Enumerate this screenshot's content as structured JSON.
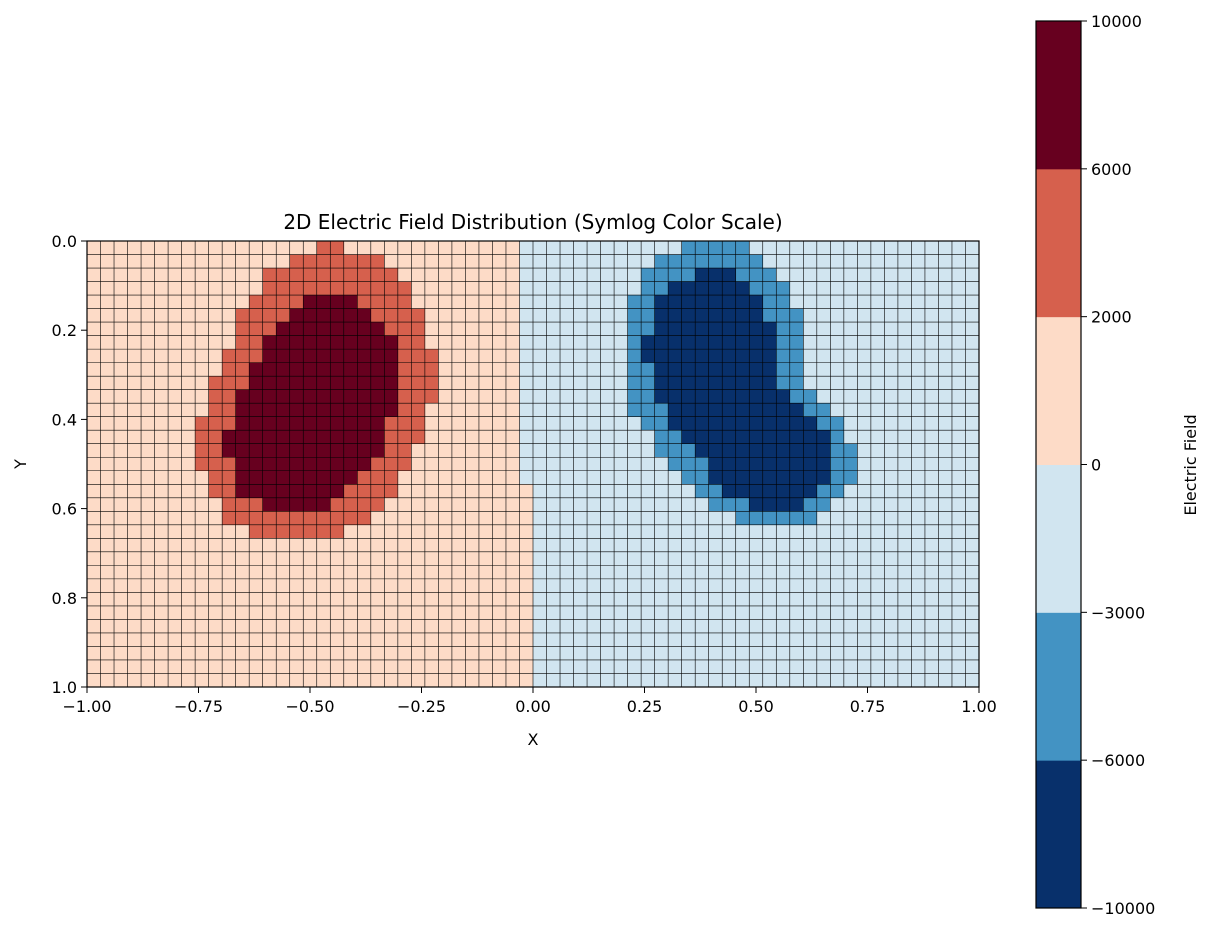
{
  "chart_data": {
    "type": "heatmap",
    "title": "2D Electric Field Distribution (Symlog Color Scale)",
    "xlabel": "X",
    "ylabel": "Y",
    "xlim": [
      -1.0,
      1.0
    ],
    "ylim": [
      0.0,
      1.0
    ],
    "y_inverted": true,
    "grid": true,
    "x_ticks": [
      "−1.00",
      "−0.75",
      "−0.50",
      "−0.25",
      "0.00",
      "0.25",
      "0.50",
      "0.75",
      "1.00"
    ],
    "y_ticks": [
      "0.0",
      "0.2",
      "0.4",
      "0.6",
      "0.8",
      "1.0"
    ],
    "nx": 66,
    "ny": 33,
    "colorbar": {
      "label": "Electric Field",
      "scale": "symlog",
      "boundaries": [
        -10000,
        -6000,
        -3000,
        0,
        2000,
        6000,
        10000
      ],
      "tick_labels": [
        "−10000",
        "−6000",
        "−3000",
        "0",
        "2000",
        "6000",
        "10000"
      ],
      "colors": [
        "#08306b",
        "#4393c3",
        "#d1e5f0",
        "#fddbc7",
        "#d6604d",
        "#67001f"
      ]
    },
    "sources": [
      {
        "sign": 1,
        "x": -0.45,
        "y": 0.3,
        "sx": 0.12,
        "sy": 0.15
      },
      {
        "sign": 1,
        "x": -0.55,
        "y": 0.48,
        "sx": 0.1,
        "sy": 0.1
      },
      {
        "sign": -1,
        "x": 0.4,
        "y": 0.25,
        "sx": 0.12,
        "sy": 0.15
      },
      {
        "sign": -1,
        "x": 0.55,
        "y": 0.5,
        "sx": 0.1,
        "sy": 0.08
      }
    ],
    "peak_value": 10000
  }
}
